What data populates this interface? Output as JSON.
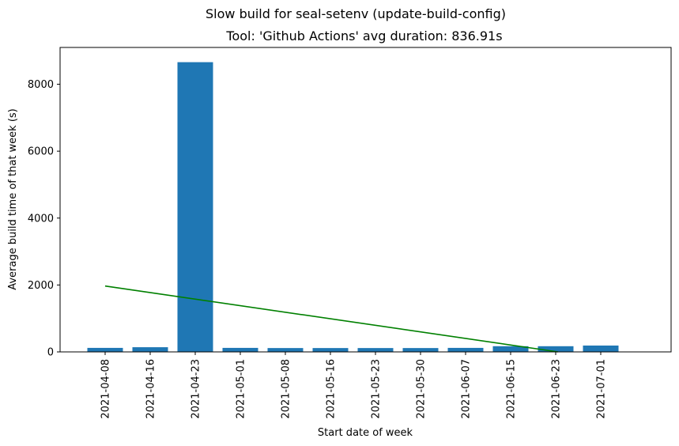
{
  "chart_data": {
    "type": "bar",
    "title": "Slow build for seal-setenv (update-build-config)",
    "subtitle": "Tool: 'Github Actions' avg duration: 836.91s",
    "xlabel": "Start date of week",
    "ylabel": "Average build time of that week (s)",
    "categories": [
      "2021-04-08",
      "2021-04-16",
      "2021-04-23",
      "2021-05-01",
      "2021-05-08",
      "2021-05-16",
      "2021-05-23",
      "2021-05-30",
      "2021-06-07",
      "2021-06-15",
      "2021-06-23",
      "2021-07-01"
    ],
    "values": [
      120,
      140,
      8660,
      120,
      115,
      115,
      115,
      115,
      120,
      170,
      170,
      190
    ],
    "ylim": [
      0,
      9100
    ],
    "yticks": [
      0,
      2000,
      4000,
      6000,
      8000
    ],
    "bar_color": "#1f77b4",
    "trend_line": {
      "start_value": 1970,
      "end_value": 0,
      "end_category_position": 10.05,
      "color": "#008000"
    },
    "grid": false,
    "legend": "none"
  }
}
